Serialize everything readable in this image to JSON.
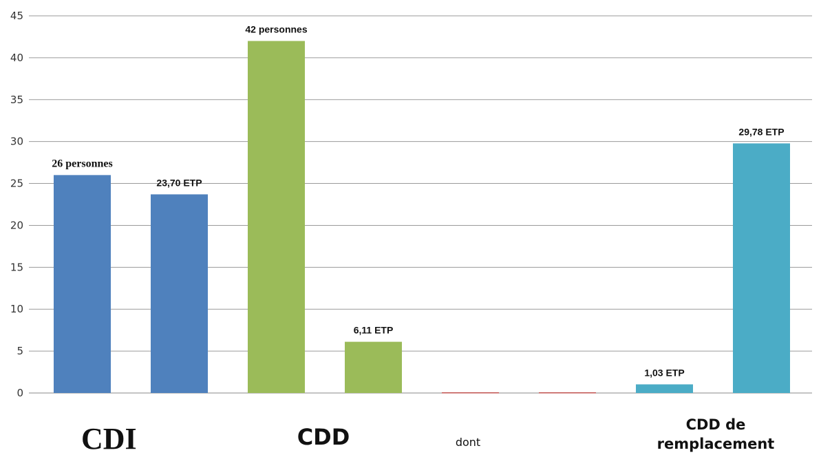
{
  "chart_data": {
    "type": "bar",
    "ylim": [
      0,
      45
    ],
    "yticks": [
      0,
      5,
      10,
      15,
      20,
      25,
      30,
      35,
      40,
      45
    ],
    "grid": true,
    "bars": [
      {
        "value": 26,
        "label": "26 personnes",
        "color": "#4F81BD",
        "group": "CDI"
      },
      {
        "value": 23.7,
        "label": "23,70 ETP",
        "color": "#4F81BD",
        "group": "CDI"
      },
      {
        "value": 42,
        "label": "42 personnes",
        "color": "#9BBB59",
        "group": "CDD"
      },
      {
        "value": 6.11,
        "label": "6,11 ETP",
        "color": "#9BBB59",
        "group": "CDD"
      },
      {
        "value": 0,
        "label": "",
        "color": "#C0504D",
        "group": "dont"
      },
      {
        "value": 0,
        "label": "",
        "color": "#C0504D",
        "group": "dont"
      },
      {
        "value": 1.03,
        "label": "1,03 ETP",
        "color": "#4BACC6",
        "group": "CDD de remplacement"
      },
      {
        "value": 29.78,
        "label": "29,78 ETP",
        "color": "#4BACC6",
        "group": "CDD de remplacement"
      }
    ],
    "group_labels": {
      "cdi": "CDI",
      "cdd": "CDD",
      "dont": "dont",
      "remplacement_line1": "CDD de",
      "remplacement_line2": "remplacement"
    }
  }
}
